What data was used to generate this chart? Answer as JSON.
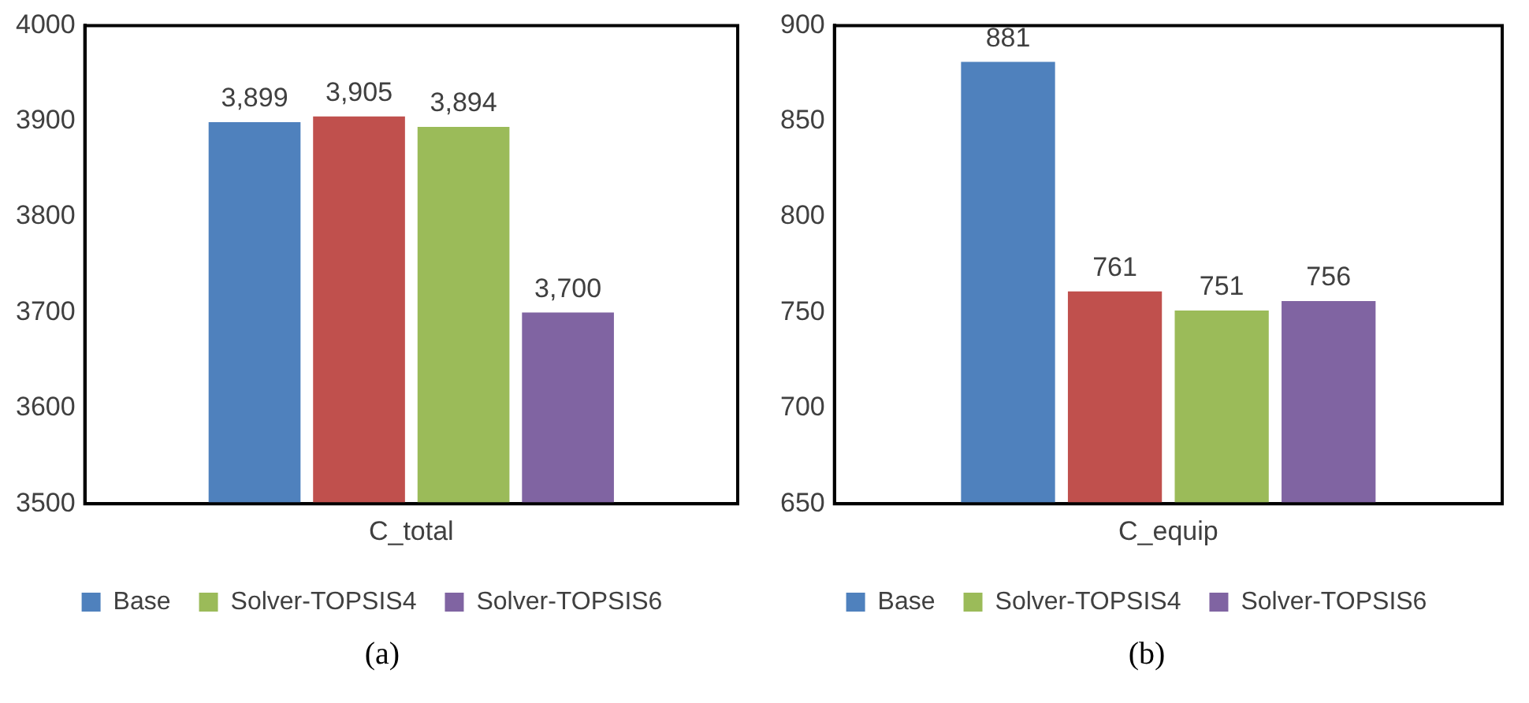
{
  "chart_data": [
    {
      "type": "bar",
      "categories": [
        "C_total"
      ],
      "series": [
        {
          "name": "Base",
          "color": "#4f81bd",
          "values": [
            3899
          ],
          "value_labels": [
            "3,899"
          ]
        },
        {
          "color": "#c0504d",
          "values": [
            3905
          ],
          "value_labels": [
            "3,905"
          ]
        },
        {
          "name": "Solver-TOPSIS4",
          "color": "#9bbb59",
          "values": [
            3894
          ],
          "value_labels": [
            "3,894"
          ]
        },
        {
          "name": "Solver-TOPSIS6",
          "color": "#8064a2",
          "values": [
            3700
          ],
          "value_labels": [
            "3,700"
          ]
        }
      ],
      "ylim": [
        3500,
        4000
      ],
      "yticks": [
        3500,
        3600,
        3700,
        3800,
        3900,
        4000
      ],
      "grid": false,
      "legend": "bottom",
      "annotations": [
        "(a)"
      ]
    },
    {
      "type": "bar",
      "categories": [
        "C_equip"
      ],
      "series": [
        {
          "name": "Base",
          "color": "#4f81bd",
          "values": [
            881
          ]
        },
        {
          "color": "#c0504d",
          "values": [
            761
          ]
        },
        {
          "name": "Solver-TOPSIS4",
          "color": "#9bbb59",
          "values": [
            751
          ]
        },
        {
          "name": "Solver-TOPSIS6",
          "color": "#8064a2",
          "values": [
            756
          ]
        }
      ],
      "ylim": [
        650,
        900
      ],
      "yticks": [
        650,
        700,
        750,
        800,
        850,
        900
      ],
      "grid": false,
      "legend": "bottom",
      "data_labels": true,
      "annotations": [
        "(b)"
      ]
    }
  ]
}
